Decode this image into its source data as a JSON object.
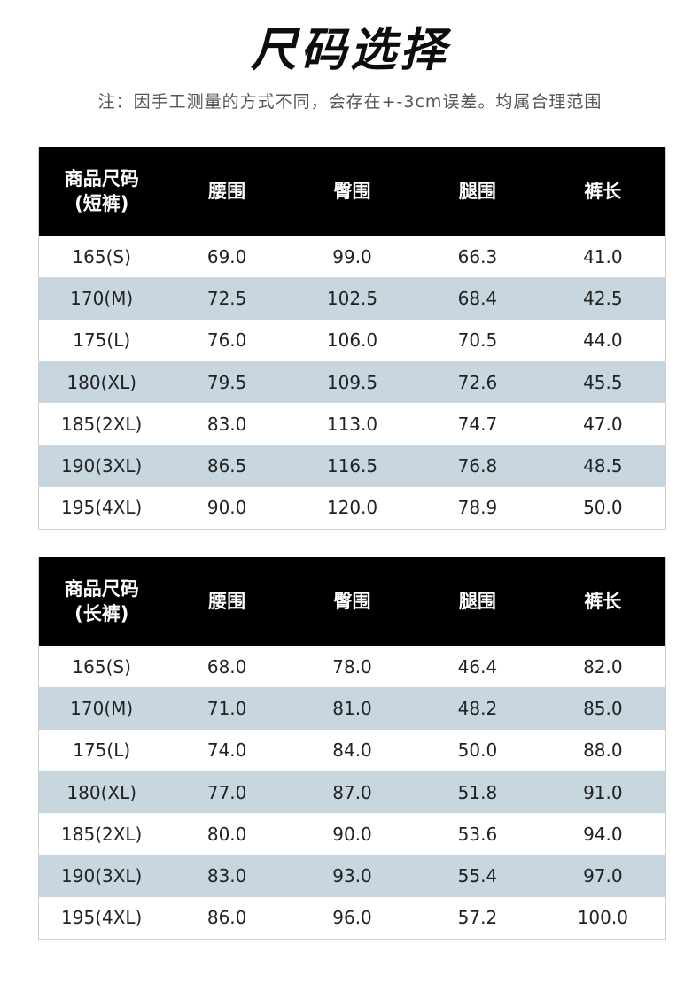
{
  "title": "尺码选择",
  "note": "注：因手工测量的方式不同，会存在+-3cm误差。均属合理范围",
  "tables": [
    {
      "header": {
        "size_line1": "商品尺码",
        "size_line2": "(短裤)",
        "waist": "腰围",
        "hip": "臀围",
        "thigh": "腿围",
        "length": "裤长"
      },
      "rows": [
        [
          "165(S)",
          "69.0",
          "99.0",
          "66.3",
          "41.0"
        ],
        [
          "170(M)",
          "72.5",
          "102.5",
          "68.4",
          "42.5"
        ],
        [
          "175(L)",
          "76.0",
          "106.0",
          "70.5",
          "44.0"
        ],
        [
          "180(XL)",
          "79.5",
          "109.5",
          "72.6",
          "45.5"
        ],
        [
          "185(2XL)",
          "83.0",
          "113.0",
          "74.7",
          "47.0"
        ],
        [
          "190(3XL)",
          "86.5",
          "116.5",
          "76.8",
          "48.5"
        ],
        [
          "195(4XL)",
          "90.0",
          "120.0",
          "78.9",
          "50.0"
        ]
      ]
    },
    {
      "header": {
        "size_line1": "商品尺码",
        "size_line2": "(长裤)",
        "waist": "腰围",
        "hip": "臀围",
        "thigh": "腿围",
        "length": "裤长"
      },
      "rows": [
        [
          "165(S)",
          "68.0",
          "78.0",
          "46.4",
          "82.0"
        ],
        [
          "170(M)",
          "71.0",
          "81.0",
          "48.2",
          "85.0"
        ],
        [
          "175(L)",
          "74.0",
          "84.0",
          "50.0",
          "88.0"
        ],
        [
          "180(XL)",
          "77.0",
          "87.0",
          "51.8",
          "91.0"
        ],
        [
          "185(2XL)",
          "80.0",
          "90.0",
          "53.6",
          "94.0"
        ],
        [
          "190(3XL)",
          "83.0",
          "93.0",
          "55.4",
          "97.0"
        ],
        [
          "195(4XL)",
          "86.0",
          "96.0",
          "57.2",
          "100.0"
        ]
      ]
    }
  ],
  "colors": {
    "header_bg": "#000000",
    "header_text": "#ffffff",
    "alt_row_bg": "#c8d6df",
    "row_bg": "#ffffff"
  }
}
